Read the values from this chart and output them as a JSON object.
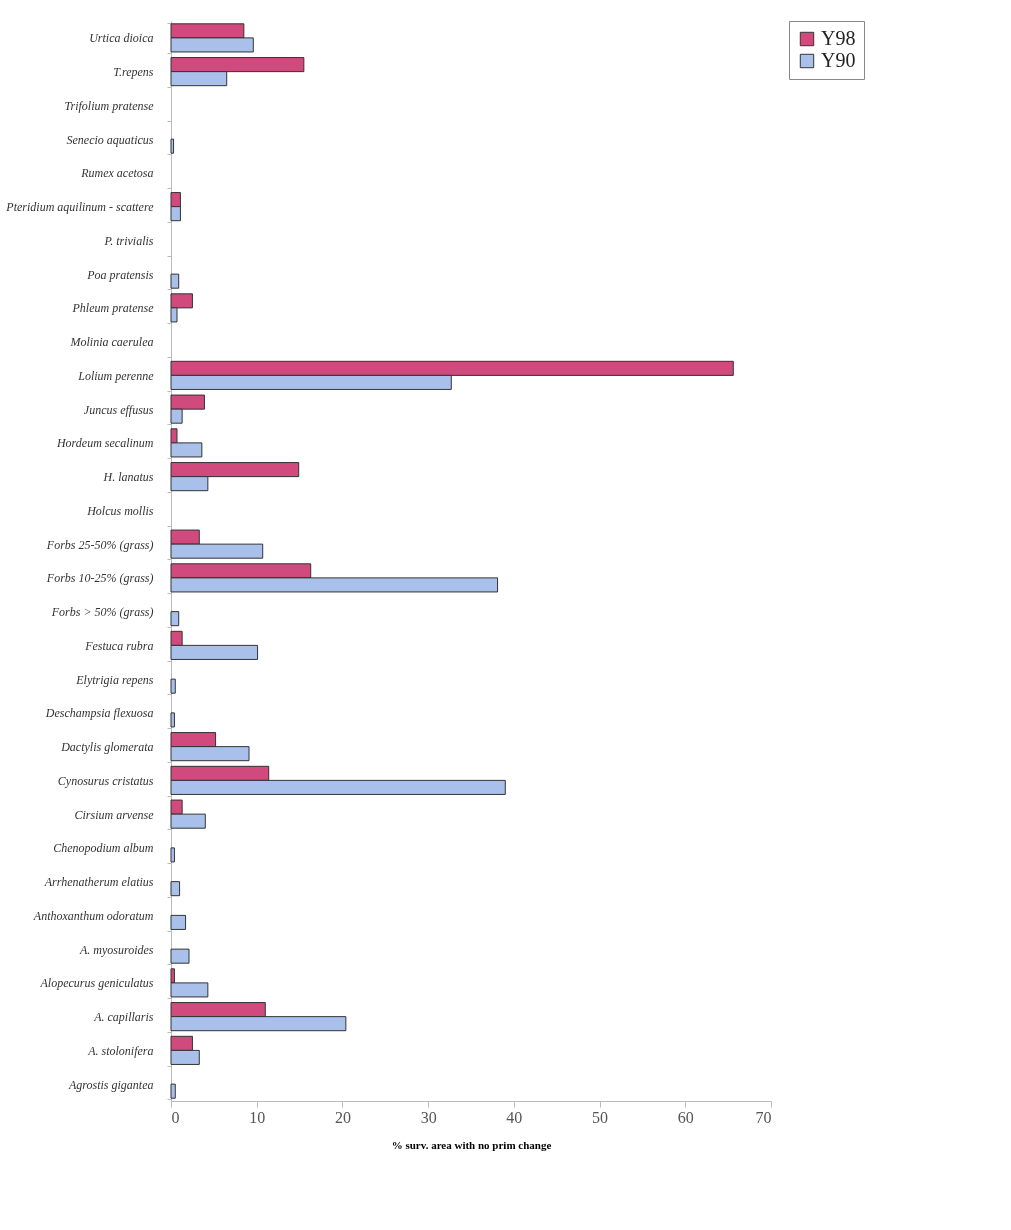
{
  "chart_data": {
    "type": "bar",
    "orientation": "horizontal",
    "xlabel": "% surv. area with no prim change",
    "categories": [
      "Urtica dioica",
      "T.repens",
      "Trifolium pratense",
      "Senecio aquaticus",
      "Rumex acetosa",
      "Pteridium aquilinum - scattere",
      "P. trivialis",
      "Poa pratensis",
      "Phleum pratense",
      "Molinia caerulea",
      "Lolium perenne",
      "Juncus effusus",
      "Hordeum secalinum",
      "H. lanatus",
      "Holcus mollis",
      "Forbs 25-50% (grass)",
      "Forbs 10-25% (grass)",
      "Forbs > 50% (grass)",
      "Festuca rubra",
      "Elytrigia repens",
      "Deschampsia flexuosa",
      "Dactylis glomerata",
      "Cynosurus cristatus",
      "Cirsium arvense",
      "Chenopodium album",
      "Arrhenatherum elatius",
      "Anthoxanthum odoratum",
      "A. myosuroides",
      "Alopecurus geniculatus",
      "A. capillaris",
      "A. stolonifera",
      "Agrostis gigantea"
    ],
    "series": [
      {
        "name": "Y98",
        "color": "#d04a7e",
        "values": [
          8.5,
          15.5,
          null,
          null,
          null,
          1.1,
          null,
          null,
          2.5,
          null,
          65.6,
          3.9,
          0.7,
          14.9,
          null,
          3.3,
          16.3,
          null,
          1.3,
          null,
          null,
          5.2,
          11.4,
          1.3,
          null,
          null,
          null,
          null,
          0.4,
          11.0,
          2.5,
          null
        ]
      },
      {
        "name": "Y90",
        "color": "#a9c1ea",
        "values": [
          9.6,
          6.5,
          null,
          0.3,
          null,
          1.1,
          null,
          0.9,
          0.7,
          null,
          32.7,
          1.3,
          3.6,
          4.3,
          null,
          10.7,
          38.1,
          0.9,
          10.1,
          0.5,
          0.4,
          9.1,
          39.0,
          4.0,
          0.4,
          1.0,
          1.7,
          2.1,
          4.3,
          20.4,
          3.3,
          0.5
        ]
      }
    ],
    "xlim": [
      0,
      70
    ],
    "xticks": [
      0,
      10,
      20,
      30,
      40,
      50,
      60,
      70
    ],
    "grid": false,
    "legend": "right"
  }
}
